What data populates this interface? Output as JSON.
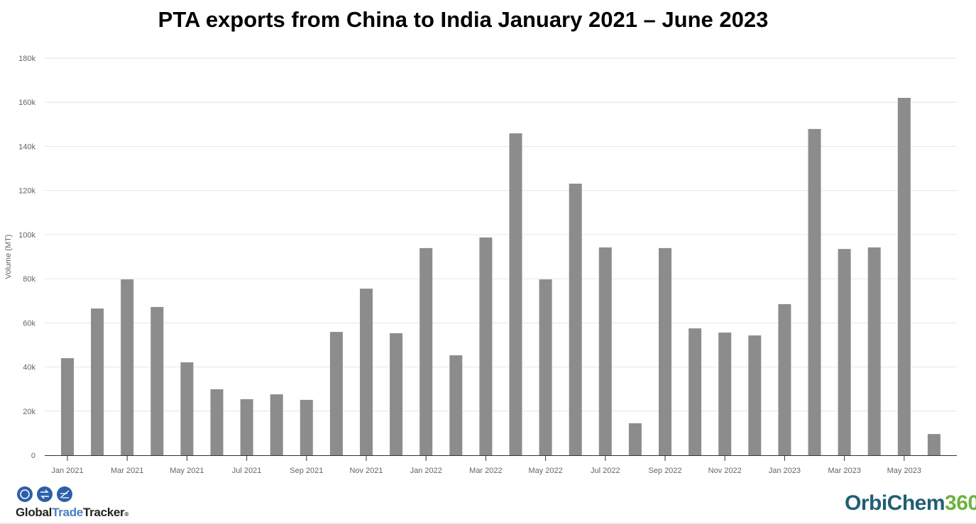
{
  "chart_data": {
    "type": "bar",
    "title": "PTA exports from China to India January 2021 – June 2023",
    "ylabel": "Volume (MT)",
    "xlabel": "",
    "ylim": [
      0,
      180000
    ],
    "yticks": [
      "0",
      "20k",
      "40k",
      "60k",
      "80k",
      "100k",
      "120k",
      "140k",
      "160k",
      "180k"
    ],
    "grid": true,
    "bar_color": "#8c8c8c",
    "categories": [
      "Jan 2021",
      "Feb 2021",
      "Mar 2021",
      "Apr 2021",
      "May 2021",
      "Jun 2021",
      "Jul 2021",
      "Aug 2021",
      "Sep 2021",
      "Oct 2021",
      "Nov 2021",
      "Dec 2021",
      "Jan 2022",
      "Feb 2022",
      "Mar 2022",
      "Apr 2022",
      "May 2022",
      "Jun 2022",
      "Jul 2022",
      "Aug 2022",
      "Sep 2022",
      "Oct 2022",
      "Nov 2022",
      "Dec 2022",
      "Jan 2023",
      "Feb 2023",
      "Mar 2023",
      "Apr 2023",
      "May 2023",
      "Jun 2023"
    ],
    "xtick_labels": [
      "Jan 2021",
      "Mar 2021",
      "May 2021",
      "Jul 2021",
      "Sep 2021",
      "Nov 2021",
      "Jan 2022",
      "Mar 2022",
      "May 2022",
      "Jul 2022",
      "Sep 2022",
      "Nov 2022",
      "Jan 2023",
      "Mar 2023",
      "May 2023"
    ],
    "values": [
      44000,
      66500,
      79700,
      67200,
      42100,
      29900,
      25400,
      27600,
      25100,
      55900,
      75500,
      55300,
      93900,
      45300,
      98700,
      145900,
      79700,
      123100,
      94200,
      14500,
      93900,
      57500,
      55600,
      54300,
      68500,
      147900,
      93500,
      94200,
      162000,
      9600
    ]
  },
  "logos": {
    "left": {
      "part1": "Global",
      "part2": "Trade",
      "part3": "Tracker",
      "mark": "®"
    },
    "right": {
      "part1": "OrbiChem",
      "part2": "360"
    }
  }
}
